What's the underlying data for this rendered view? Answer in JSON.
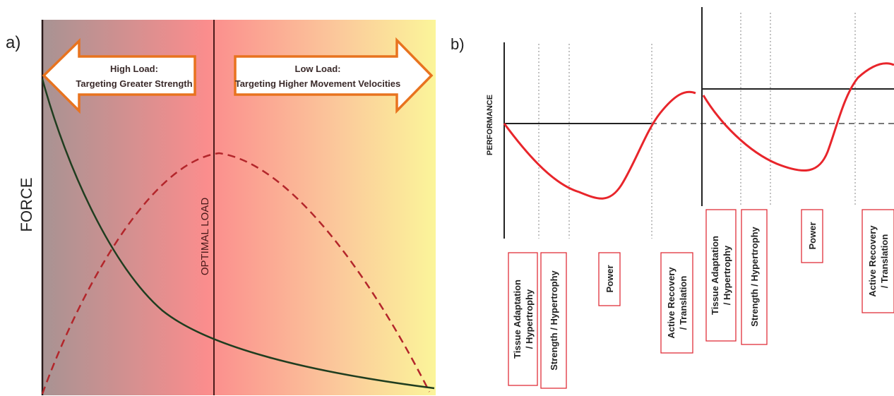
{
  "panel_a": {
    "label": "a)",
    "y_axis_label": "FORCE",
    "optimal_label": "OPTIMAL LOAD",
    "left_arrow": {
      "line1": "High Load:",
      "line2": "Targeting Greater Strength"
    },
    "right_arrow": {
      "line1": "Low Load:",
      "line2": "Targeting Higher Movement Velocities"
    },
    "colors": {
      "left_bg": "#a89090",
      "mid_bg": "#fb8f8f",
      "right_bg": "#fbf59a",
      "force_curve": "#1f3d1f",
      "power_curve": "#b3262b",
      "arrow_border": "#e8731f"
    }
  },
  "panel_b": {
    "label": "b)",
    "y_axis_label": "PERFORMANCE",
    "phases_cycle1": [
      "Tissue Adaptation / Hypertrophy",
      "Strength / Hypertrophy",
      "Power",
      "Active Recovery / Translation"
    ],
    "phases_cycle2": [
      "Tissue Adaptation / Hypertrophy",
      "Strength / Hypertrophy",
      "Power",
      "Active Recovery / Translation"
    ],
    "colors": {
      "curve": "#e8252b",
      "box_border": "#e0303a"
    }
  }
}
